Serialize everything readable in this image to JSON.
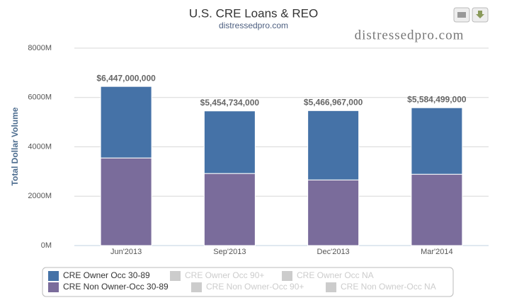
{
  "chart_data": {
    "type": "stacked_bar",
    "title": "U.S. CRE Loans & REO",
    "subtitle": "distressedpro.com",
    "watermark": "distressedpro.com",
    "ylabel": "Total Dollar Volume",
    "categories": [
      "Jun'2013",
      "Sep'2013",
      "Dec'2013",
      "Mar'2014"
    ],
    "series": [
      {
        "name": "CRE Owner Occ 30-89",
        "color": "#4572a7",
        "visible": true,
        "values": [
          2897,
          2534.734,
          2806.967,
          2694.499
        ]
      },
      {
        "name": "CRE Owner Occ 90+",
        "color": "#cccccc",
        "visible": false,
        "values": [
          null,
          null,
          null,
          null
        ]
      },
      {
        "name": "CRE Owner Occ NA",
        "color": "#cccccc",
        "visible": false,
        "values": [
          null,
          null,
          null,
          null
        ]
      },
      {
        "name": "CRE Non Owner-Occ 30-89",
        "color": "#7a6c9b",
        "visible": true,
        "values": [
          3550,
          2920,
          2660,
          2890
        ]
      },
      {
        "name": "CRE Non Owner-Occ 90+",
        "color": "#cccccc",
        "visible": false,
        "values": [
          null,
          null,
          null,
          null
        ]
      },
      {
        "name": "CRE Non Owner-Occ NA",
        "color": "#cccccc",
        "visible": false,
        "values": [
          null,
          null,
          null,
          null
        ]
      }
    ],
    "stack_order": [
      3,
      0
    ],
    "totals": [
      6447,
      5454.734,
      5466.967,
      5584.499
    ],
    "total_labels": [
      "$6,447,000,000",
      "$5,454,734,000",
      "$5,466,967,000",
      "$5,584,499,000"
    ],
    "ylim": [
      0,
      8000
    ],
    "yticks": [
      {
        "value": 0,
        "label": "0M"
      },
      {
        "value": 2000,
        "label": "2000M"
      },
      {
        "value": 4000,
        "label": "4000M"
      },
      {
        "value": 6000,
        "label": "6000M"
      },
      {
        "value": 8000,
        "label": "8000M"
      }
    ],
    "grid": true
  }
}
